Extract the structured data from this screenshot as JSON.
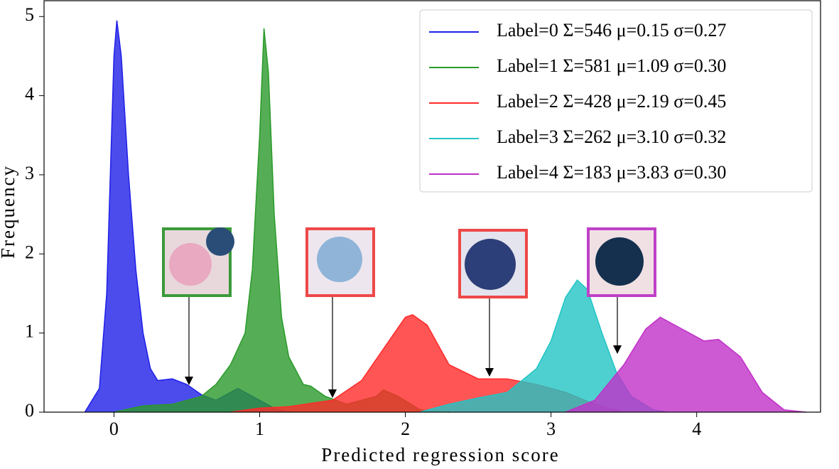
{
  "chart_data": {
    "type": "area",
    "xlabel": "Predicted regression score",
    "ylabel": "Frequency",
    "xlim": [
      -0.48,
      4.85
    ],
    "ylim": [
      0,
      5.2
    ],
    "xticks": [
      0,
      1,
      2,
      3,
      4
    ],
    "yticks": [
      0,
      1,
      2,
      3,
      4,
      5
    ],
    "legend": "upper right",
    "series": [
      {
        "name": "Label=0 Σ=546 μ=0.15 σ=0.27",
        "color": "#1f1fe8",
        "x": [
          -0.2,
          -0.1,
          -0.05,
          0,
          0.02,
          0.05,
          0.1,
          0.15,
          0.2,
          0.25,
          0.3,
          0.4,
          0.5,
          0.6,
          0.7,
          0.8,
          0.85,
          0.9,
          1.0,
          1.1,
          1.2
        ],
        "values": [
          0,
          0.3,
          1.5,
          4.5,
          4.95,
          4.5,
          3.0,
          1.8,
          1.0,
          0.55,
          0.4,
          0.42,
          0.35,
          0.22,
          0.15,
          0.25,
          0.3,
          0.25,
          0.15,
          0.05,
          0
        ]
      },
      {
        "name": "Label=1 Σ=581 μ=1.09 σ=0.30",
        "color": "#2a9a2a",
        "x": [
          0.0,
          0.2,
          0.4,
          0.6,
          0.7,
          0.8,
          0.9,
          0.95,
          1.0,
          1.03,
          1.06,
          1.1,
          1.15,
          1.2,
          1.3,
          1.35,
          1.45,
          1.6,
          1.8,
          1.85,
          1.95,
          2.1,
          2.3
        ],
        "values": [
          0,
          0.08,
          0.1,
          0.2,
          0.35,
          0.6,
          1.0,
          1.8,
          3.5,
          4.85,
          4.3,
          2.5,
          1.2,
          0.7,
          0.35,
          0.33,
          0.2,
          0.1,
          0.2,
          0.28,
          0.2,
          0.03,
          0
        ]
      },
      {
        "name": "Label=2 Σ=428 μ=2.19 σ=0.45",
        "color": "#ff2a2a",
        "x": [
          0.8,
          1.0,
          1.2,
          1.5,
          1.7,
          1.85,
          2.0,
          2.05,
          2.15,
          2.3,
          2.5,
          2.7,
          2.9,
          3.1,
          3.3,
          3.5
        ],
        "values": [
          0,
          0.05,
          0.07,
          0.15,
          0.4,
          0.8,
          1.2,
          1.23,
          1.1,
          0.6,
          0.42,
          0.42,
          0.35,
          0.25,
          0.1,
          0
        ]
      },
      {
        "name": "Label=3 Σ=262 μ=3.10 σ=0.32",
        "color": "#22c4c4",
        "x": [
          2.1,
          2.3,
          2.5,
          2.7,
          2.9,
          3.0,
          3.1,
          3.18,
          3.25,
          3.35,
          3.45,
          3.55,
          3.7,
          3.8
        ],
        "values": [
          0,
          0.1,
          0.18,
          0.25,
          0.55,
          0.9,
          1.45,
          1.67,
          1.55,
          1.0,
          0.5,
          0.2,
          0.03,
          0
        ]
      },
      {
        "name": "Label=4 Σ=183 μ=3.83 σ=0.30",
        "color": "#c030c8",
        "x": [
          3.1,
          3.3,
          3.5,
          3.65,
          3.75,
          3.9,
          4.05,
          4.15,
          4.3,
          4.45,
          4.6,
          4.75
        ],
        "values": [
          0,
          0.15,
          0.6,
          1.05,
          1.2,
          1.05,
          0.9,
          0.92,
          0.7,
          0.25,
          0.03,
          0
        ]
      }
    ]
  }
}
